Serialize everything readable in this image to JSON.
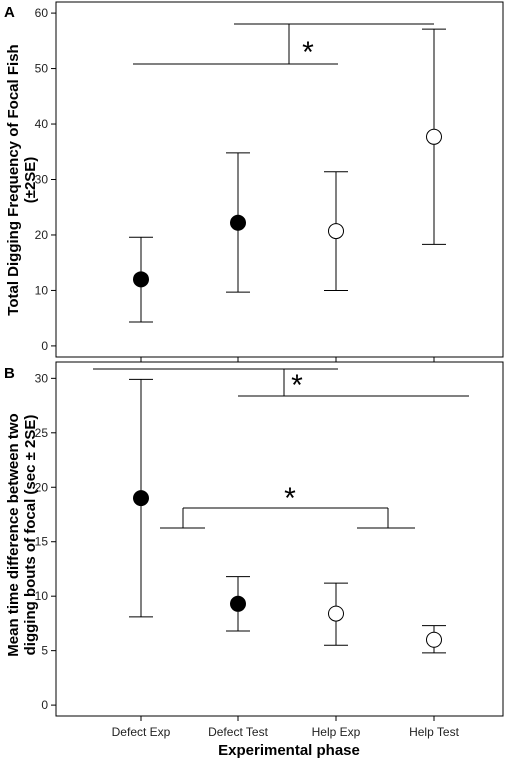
{
  "figure": {
    "xlabel": "Experimental phase"
  },
  "chart_data": [
    {
      "panel": "A",
      "type": "scatter",
      "categories": [
        "Defect Exp",
        "Defect Test",
        "Help Exp",
        "Help Test"
      ],
      "ylabel_lines": [
        "Total Digging Frequency of Focal Fish",
        "(±2SE)"
      ],
      "ylim": [
        -2,
        62
      ],
      "yticks": [
        0,
        10,
        20,
        30,
        40,
        50,
        60
      ],
      "markers": [
        "filled",
        "filled",
        "open",
        "open"
      ],
      "means": [
        12.0,
        22.2,
        20.7,
        37.7
      ],
      "upper": [
        19.6,
        34.8,
        31.4,
        57.1
      ],
      "lower": [
        4.3,
        9.7,
        10.0,
        18.3
      ],
      "significance": [
        {
          "label": "*",
          "compares": [
            "Defect",
            "Help"
          ]
        }
      ]
    },
    {
      "panel": "B",
      "type": "scatter",
      "categories": [
        "Defect Exp",
        "Defect Test",
        "Help Exp",
        "Help Test"
      ],
      "ylabel_lines": [
        "Mean time difference between two",
        "digging bouts of focal (sec ± 2SE)"
      ],
      "ylim": [
        -1,
        31.5
      ],
      "yticks": [
        0,
        5,
        10,
        15,
        20,
        25,
        30
      ],
      "markers": [
        "filled",
        "filled",
        "open",
        "open"
      ],
      "means": [
        19.0,
        9.3,
        8.4,
        6.0
      ],
      "upper": [
        29.9,
        11.8,
        11.2,
        7.3
      ],
      "lower": [
        8.1,
        6.8,
        5.5,
        4.8
      ],
      "significance": [
        {
          "label": "*",
          "compares": [
            "Defect Exp",
            "Defect Test/Help Exp/Help Test"
          ]
        },
        {
          "label": "*",
          "compares": [
            "Exp",
            "Test"
          ]
        }
      ]
    }
  ]
}
